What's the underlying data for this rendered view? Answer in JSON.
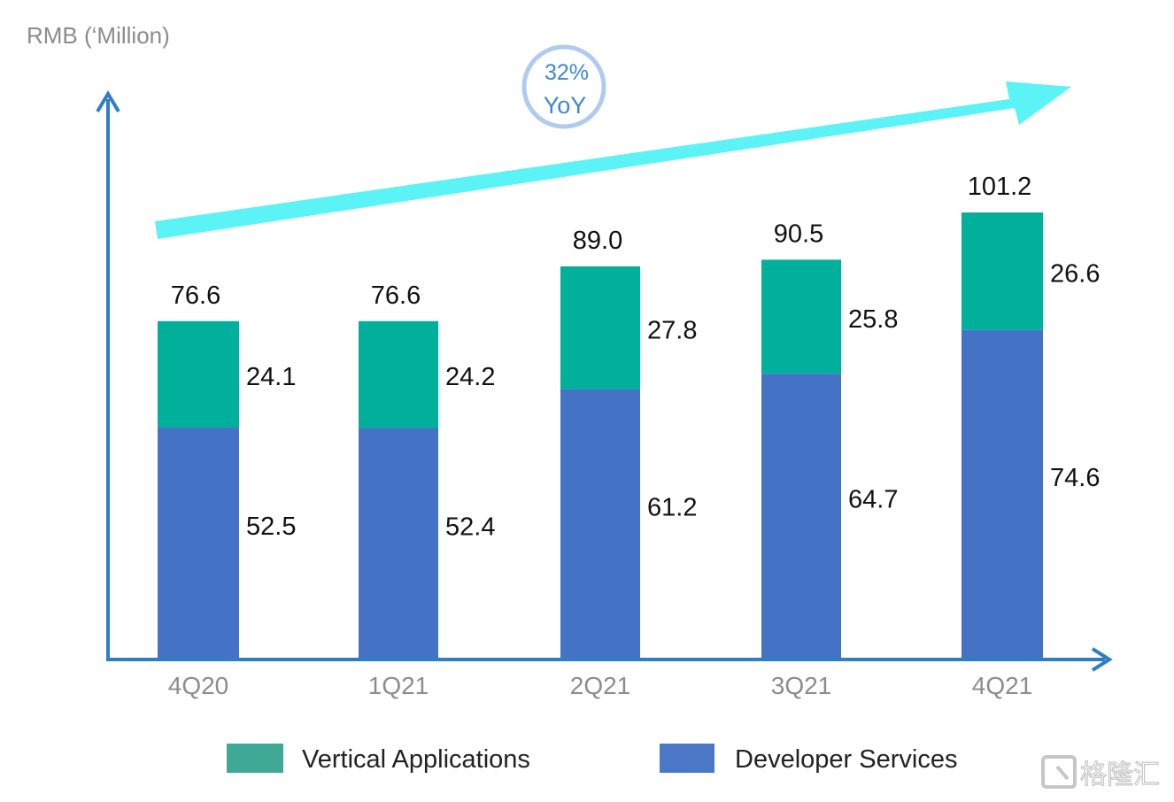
{
  "chart_data": {
    "type": "bar",
    "stacked": true,
    "ylabel": "RMB (‘Million)",
    "categories": [
      "4Q20",
      "1Q21",
      "2Q21",
      "3Q21",
      "4Q21"
    ],
    "series": [
      {
        "name": "Developer Services",
        "values": [
          52.5,
          52.4,
          61.2,
          64.7,
          74.6
        ],
        "color": "#4472C4"
      },
      {
        "name": "Vertical Applications",
        "values": [
          24.1,
          24.2,
          27.8,
          25.8,
          26.6
        ],
        "color": "#00B09B"
      }
    ],
    "totals": [
      "76.6",
      "76.6",
      "89.0",
      "90.5",
      "101.2"
    ],
    "segment_labels": {
      "Developer Services": [
        "52.5",
        "52.4",
        "61.2",
        "64.7",
        "74.6"
      ],
      "Vertical Applications": [
        "24.1",
        "24.2",
        "27.8",
        "25.8",
        "26.6"
      ]
    },
    "ylim": [
      0,
      110
    ],
    "grid": false,
    "legend_position": "bottom",
    "legend": [
      "Vertical Applications",
      "Developer Services"
    ],
    "annotation": {
      "line1": "32%",
      "line2": "YoY"
    }
  },
  "colors": {
    "axis": "#2F7DC6",
    "trend_arrow": "#5CF3F6",
    "badge_border": "#AFCBEF",
    "badge_text": "#3C8ACB",
    "tick_label": "#8C8C8C"
  },
  "watermark": "格隆汇"
}
